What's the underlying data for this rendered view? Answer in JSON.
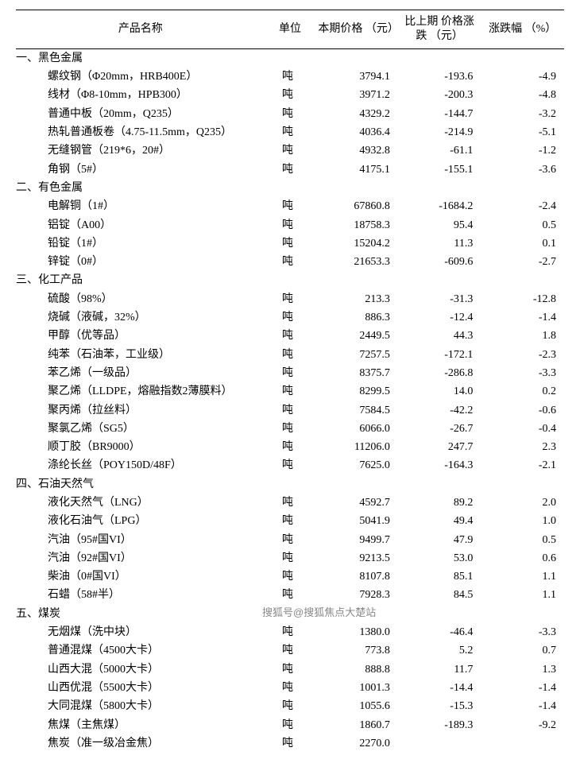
{
  "headers": {
    "name": "产品名称",
    "unit": "单位",
    "price": "本期价格\n（元）",
    "diff": "比上期\n价格涨跌\n（元）",
    "pct": "涨跌幅\n（%）"
  },
  "watermark": "搜狐号@搜狐焦点大楚站",
  "sections": [
    {
      "title": "一、黑色金属",
      "rows": [
        {
          "name": "螺纹钢（Φ20mm，HRB400E）",
          "unit": "吨",
          "price": "3794.1",
          "diff": "-193.6",
          "pct": "-4.9"
        },
        {
          "name": "线材（Φ8-10mm，HPB300）",
          "unit": "吨",
          "price": "3971.2",
          "diff": "-200.3",
          "pct": "-4.8"
        },
        {
          "name": "普通中板（20mm，Q235）",
          "unit": "吨",
          "price": "4329.2",
          "diff": "-144.7",
          "pct": "-3.2"
        },
        {
          "name": "热轧普通板卷（4.75-11.5mm，Q235）",
          "unit": "吨",
          "price": "4036.4",
          "diff": "-214.9",
          "pct": "-5.1"
        },
        {
          "name": "无缝钢管（219*6，20#）",
          "unit": "吨",
          "price": "4932.8",
          "diff": "-61.1",
          "pct": "-1.2"
        },
        {
          "name": "角钢（5#）",
          "unit": "吨",
          "price": "4175.1",
          "diff": "-155.1",
          "pct": "-3.6"
        }
      ]
    },
    {
      "title": "二、有色金属",
      "rows": [
        {
          "name": "电解铜（1#）",
          "unit": "吨",
          "price": "67860.8",
          "diff": "-1684.2",
          "pct": "-2.4"
        },
        {
          "name": "铝锭（A00）",
          "unit": "吨",
          "price": "18758.3",
          "diff": "95.4",
          "pct": "0.5"
        },
        {
          "name": "铅锭（1#）",
          "unit": "吨",
          "price": "15204.2",
          "diff": "11.3",
          "pct": "0.1"
        },
        {
          "name": "锌锭（0#）",
          "unit": "吨",
          "price": "21653.3",
          "diff": "-609.6",
          "pct": "-2.7"
        }
      ]
    },
    {
      "title": "三、化工产品",
      "rows": [
        {
          "name": "硫酸（98%）",
          "unit": "吨",
          "price": "213.3",
          "diff": "-31.3",
          "pct": "-12.8"
        },
        {
          "name": "烧碱（液碱，32%）",
          "unit": "吨",
          "price": "886.3",
          "diff": "-12.4",
          "pct": "-1.4"
        },
        {
          "name": "甲醇（优等品）",
          "unit": "吨",
          "price": "2449.5",
          "diff": "44.3",
          "pct": "1.8"
        },
        {
          "name": "纯苯（石油苯，工业级）",
          "unit": "吨",
          "price": "7257.5",
          "diff": "-172.1",
          "pct": "-2.3"
        },
        {
          "name": "苯乙烯（一级品）",
          "unit": "吨",
          "price": "8375.7",
          "diff": "-286.8",
          "pct": "-3.3"
        },
        {
          "name": "聚乙烯（LLDPE，熔融指数2薄膜料）",
          "unit": "吨",
          "price": "8299.5",
          "diff": "14.0",
          "pct": "0.2"
        },
        {
          "name": "聚丙烯（拉丝料）",
          "unit": "吨",
          "price": "7584.5",
          "diff": "-42.2",
          "pct": "-0.6"
        },
        {
          "name": "聚氯乙烯（SG5）",
          "unit": "吨",
          "price": "6066.0",
          "diff": "-26.7",
          "pct": "-0.4"
        },
        {
          "name": "顺丁胶（BR9000）",
          "unit": "吨",
          "price": "11206.0",
          "diff": "247.7",
          "pct": "2.3"
        },
        {
          "name": "涤纶长丝（POY150D/48F）",
          "unit": "吨",
          "price": "7625.0",
          "diff": "-164.3",
          "pct": "-2.1"
        }
      ]
    },
    {
      "title": "四、石油天然气",
      "rows": [
        {
          "name": "液化天然气（LNG）",
          "unit": "吨",
          "price": "4592.7",
          "diff": "89.2",
          "pct": "2.0"
        },
        {
          "name": "液化石油气（LPG）",
          "unit": "吨",
          "price": "5041.9",
          "diff": "49.4",
          "pct": "1.0"
        },
        {
          "name": "汽油（95#国VI）",
          "unit": "吨",
          "price": "9499.7",
          "diff": "47.9",
          "pct": "0.5"
        },
        {
          "name": "汽油（92#国VI）",
          "unit": "吨",
          "price": "9213.5",
          "diff": "53.0",
          "pct": "0.6"
        },
        {
          "name": "柴油（0#国VI）",
          "unit": "吨",
          "price": "8107.8",
          "diff": "85.1",
          "pct": "1.1"
        },
        {
          "name": "石蜡（58#半）",
          "unit": "吨",
          "price": "7928.3",
          "diff": "84.5",
          "pct": "1.1"
        }
      ]
    },
    {
      "title": "五、煤炭",
      "rows": [
        {
          "name": "无烟煤（洗中块）",
          "unit": "吨",
          "price": "1380.0",
          "diff": "-46.4",
          "pct": "-3.3"
        },
        {
          "name": "普通混煤（4500大卡）",
          "unit": "吨",
          "price": "773.8",
          "diff": "5.2",
          "pct": "0.7"
        },
        {
          "name": "山西大混（5000大卡）",
          "unit": "吨",
          "price": "888.8",
          "diff": "11.7",
          "pct": "1.3"
        },
        {
          "name": "山西优混（5500大卡）",
          "unit": "吨",
          "price": "1001.3",
          "diff": "-14.4",
          "pct": "-1.4"
        },
        {
          "name": "大同混煤（5800大卡）",
          "unit": "吨",
          "price": "1055.6",
          "diff": "-15.3",
          "pct": "-1.4"
        },
        {
          "name": "焦煤（主焦煤）",
          "unit": "吨",
          "price": "1860.7",
          "diff": "-189.3",
          "pct": "-9.2"
        },
        {
          "name": "焦炭（准一级冶金焦）",
          "unit": "吨",
          "price": "2270.0",
          "diff": "",
          "pct": ""
        }
      ]
    }
  ]
}
